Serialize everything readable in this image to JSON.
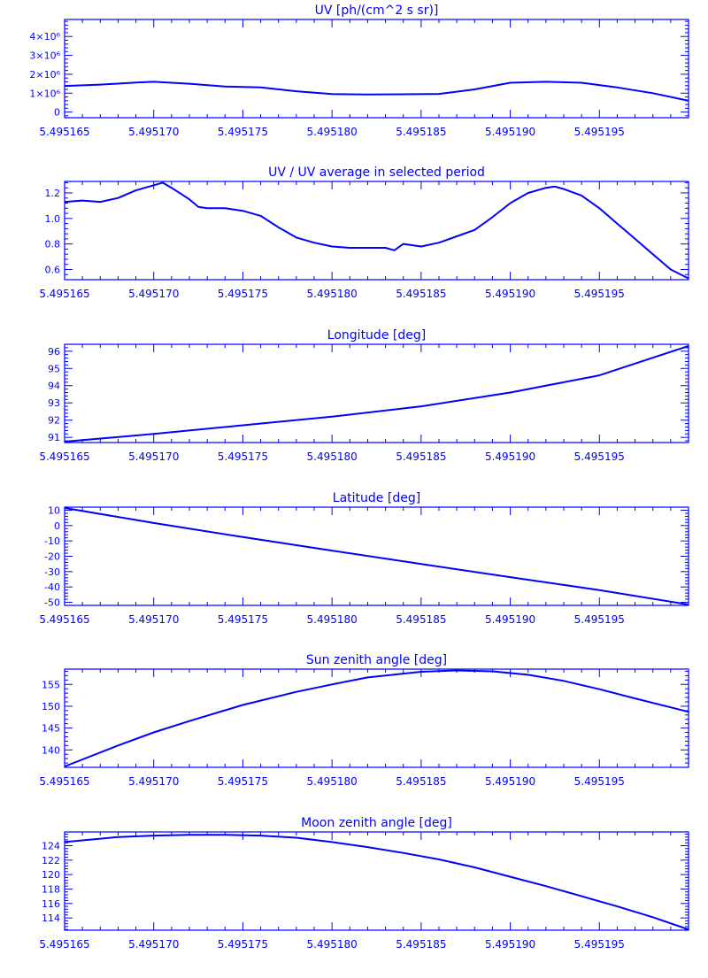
{
  "page": {
    "color": "#0000ff",
    "background": "#ffffff"
  },
  "chart_data": [
    {
      "type": "line",
      "title": "UV [ph/(cm^2 s sr)]",
      "xlim": [
        5.495165,
        5.4952
      ],
      "ylim": [
        -300000,
        4900000
      ],
      "x_ticks": [
        5.495165,
        5.49517,
        5.495175,
        5.49518,
        5.495185,
        5.49519,
        5.495195
      ],
      "x_tick_labels": [
        "5.495165",
        "5.495170",
        "5.495175",
        "5.495180",
        "5.495185",
        "5.495190",
        "5.495195"
      ],
      "y_ticks": [
        0,
        1000000,
        2000000,
        3000000,
        4000000
      ],
      "y_tick_labels": [
        "0",
        "1×10⁶",
        "2×10⁶",
        "3×10⁶",
        "4×10⁶"
      ],
      "series": [
        {
          "x": [
            5.495165,
            5.495167,
            5.495169,
            5.49517,
            5.495172,
            5.495174,
            5.495176,
            5.495178,
            5.49518,
            5.495182,
            5.495184,
            5.495186,
            5.495188,
            5.49519,
            5.495192,
            5.495194,
            5.495196,
            5.495198,
            5.4952
          ],
          "y": [
            1380000,
            1450000,
            1560000,
            1600000,
            1500000,
            1350000,
            1300000,
            1100000,
            950000,
            930000,
            940000,
            960000,
            1200000,
            1550000,
            1600000,
            1550000,
            1300000,
            1000000,
            600000
          ]
        }
      ]
    },
    {
      "type": "line",
      "title": "UV / UV average in selected period",
      "xlim": [
        5.495165,
        5.4952
      ],
      "ylim": [
        0.52,
        1.29
      ],
      "x_ticks": [
        5.495165,
        5.49517,
        5.495175,
        5.49518,
        5.495185,
        5.49519,
        5.495195
      ],
      "x_tick_labels": [
        "5.495165",
        "5.495170",
        "5.495175",
        "5.495180",
        "5.495185",
        "5.495190",
        "5.495195"
      ],
      "y_ticks": [
        0.6,
        0.8,
        1.0,
        1.2
      ],
      "y_tick_labels": [
        "0.6",
        "0.8",
        "1.0",
        "1.2"
      ],
      "series": [
        {
          "x": [
            5.495165,
            5.495166,
            5.495167,
            5.495168,
            5.495169,
            5.49517,
            5.4951705,
            5.495171,
            5.495172,
            5.4951725,
            5.495173,
            5.495174,
            5.495175,
            5.495176,
            5.495177,
            5.495178,
            5.495179,
            5.49518,
            5.495181,
            5.495182,
            5.495183,
            5.4951835,
            5.495184,
            5.495185,
            5.495186,
            5.495187,
            5.495188,
            5.495189,
            5.49519,
            5.495191,
            5.495192,
            5.4951925,
            5.495193,
            5.495194,
            5.495195,
            5.495196,
            5.495197,
            5.495198,
            5.495199,
            5.4952
          ],
          "y": [
            1.13,
            1.14,
            1.13,
            1.16,
            1.22,
            1.26,
            1.28,
            1.24,
            1.15,
            1.09,
            1.08,
            1.08,
            1.06,
            1.02,
            0.93,
            0.85,
            0.81,
            0.78,
            0.77,
            0.77,
            0.77,
            0.75,
            0.8,
            0.78,
            0.81,
            0.86,
            0.91,
            1.01,
            1.12,
            1.2,
            1.24,
            1.25,
            1.23,
            1.18,
            1.08,
            0.96,
            0.84,
            0.72,
            0.6,
            0.53
          ]
        }
      ]
    },
    {
      "type": "line",
      "title": "Longitude [deg]",
      "xlim": [
        5.495165,
        5.4952
      ],
      "ylim": [
        90.7,
        96.4
      ],
      "x_ticks": [
        5.495165,
        5.49517,
        5.495175,
        5.49518,
        5.495185,
        5.49519,
        5.495195
      ],
      "x_tick_labels": [
        "5.495165",
        "5.495170",
        "5.495175",
        "5.495180",
        "5.495185",
        "5.495190",
        "5.495195"
      ],
      "y_ticks": [
        91,
        92,
        93,
        94,
        95,
        96
      ],
      "y_tick_labels": [
        "91",
        "92",
        "93",
        "94",
        "95",
        "96"
      ],
      "series": [
        {
          "x": [
            5.495165,
            5.49517,
            5.495175,
            5.49518,
            5.495185,
            5.49519,
            5.495195,
            5.4952
          ],
          "y": [
            90.75,
            91.2,
            91.7,
            92.2,
            92.8,
            93.6,
            94.6,
            96.3
          ]
        }
      ]
    },
    {
      "type": "line",
      "title": "Latitude [deg]",
      "xlim": [
        5.495165,
        5.4952
      ],
      "ylim": [
        -52,
        12
      ],
      "x_ticks": [
        5.495165,
        5.49517,
        5.495175,
        5.49518,
        5.495185,
        5.49519,
        5.495195
      ],
      "x_tick_labels": [
        "5.495165",
        "5.495170",
        "5.495175",
        "5.495180",
        "5.495185",
        "5.495190",
        "5.495195"
      ],
      "y_ticks": [
        -50,
        -40,
        -30,
        -20,
        -10,
        0,
        10
      ],
      "y_tick_labels": [
        "-50",
        "-40",
        "-30",
        "-20",
        "-10",
        "0",
        "10"
      ],
      "series": [
        {
          "x": [
            5.495165,
            5.49517,
            5.495175,
            5.49518,
            5.495185,
            5.49519,
            5.495195,
            5.4952
          ],
          "y": [
            11.5,
            1.7,
            -7.5,
            -16.3,
            -25.0,
            -33.6,
            -42.0,
            -51.5
          ]
        }
      ]
    },
    {
      "type": "line",
      "title": "Sun zenith angle [deg]",
      "xlim": [
        5.495165,
        5.4952
      ],
      "ylim": [
        136,
        158.5
      ],
      "x_ticks": [
        5.495165,
        5.49517,
        5.495175,
        5.49518,
        5.495185,
        5.49519,
        5.495195
      ],
      "x_tick_labels": [
        "5.495165",
        "5.495170",
        "5.495175",
        "5.495180",
        "5.495185",
        "5.495190",
        "5.495195"
      ],
      "y_ticks": [
        140,
        145,
        150,
        155
      ],
      "y_tick_labels": [
        "140",
        "145",
        "150",
        "155"
      ],
      "series": [
        {
          "x": [
            5.495165,
            5.495168,
            5.49517,
            5.495172,
            5.495175,
            5.495178,
            5.49518,
            5.495182,
            5.495185,
            5.495187,
            5.495189,
            5.495191,
            5.495193,
            5.495195,
            5.495197,
            5.4952
          ],
          "y": [
            136.2,
            141.0,
            144.0,
            146.6,
            150.3,
            153.3,
            155.0,
            156.6,
            157.9,
            158.2,
            158.0,
            157.2,
            155.8,
            153.9,
            151.8,
            148.7
          ]
        }
      ]
    },
    {
      "type": "line",
      "title": "Moon zenith angle [deg]",
      "xlim": [
        5.495165,
        5.4952
      ],
      "ylim": [
        112.3,
        125.9
      ],
      "x_ticks": [
        5.495165,
        5.49517,
        5.495175,
        5.49518,
        5.495185,
        5.49519,
        5.495195
      ],
      "x_tick_labels": [
        "5.495165",
        "5.495170",
        "5.495175",
        "5.495180",
        "5.495185",
        "5.495190",
        "5.495195"
      ],
      "y_ticks": [
        114,
        116,
        118,
        120,
        122,
        124
      ],
      "y_tick_labels": [
        "114",
        "116",
        "118",
        "120",
        "122",
        "124"
      ],
      "series": [
        {
          "x": [
            5.495165,
            5.495168,
            5.49517,
            5.495172,
            5.495174,
            5.495176,
            5.495178,
            5.49518,
            5.495182,
            5.495184,
            5.495186,
            5.495188,
            5.49519,
            5.495192,
            5.495194,
            5.495196,
            5.495198,
            5.4952
          ],
          "y": [
            124.5,
            125.2,
            125.4,
            125.5,
            125.5,
            125.4,
            125.1,
            124.5,
            123.8,
            123.0,
            122.1,
            121.0,
            119.7,
            118.4,
            117.0,
            115.6,
            114.1,
            112.4
          ]
        }
      ]
    }
  ]
}
